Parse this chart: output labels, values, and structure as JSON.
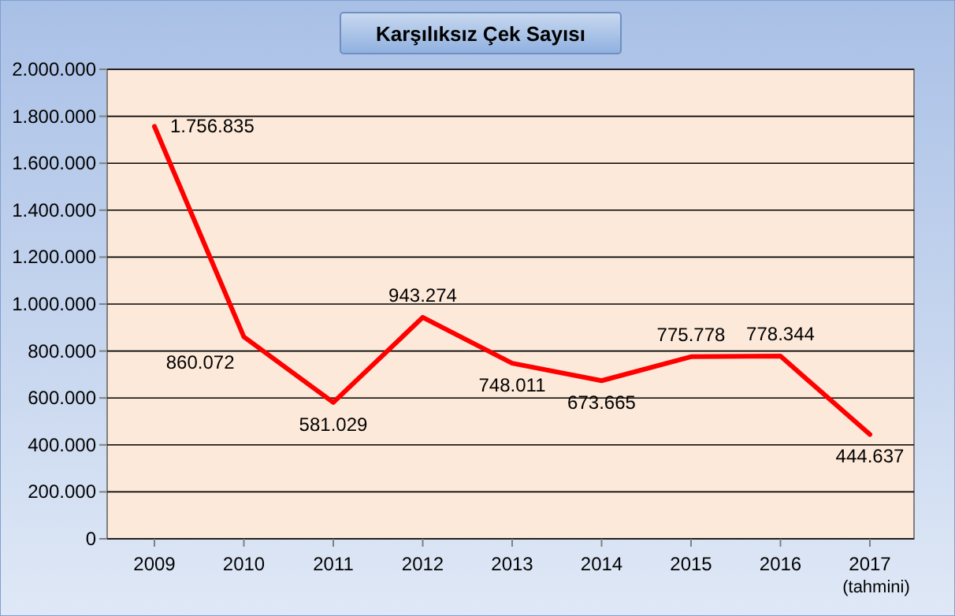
{
  "chart_data": {
    "type": "line",
    "title": "Karşılıksız Çek Sayısı",
    "categories": [
      "2009",
      "2010",
      "2011",
      "2012",
      "2013",
      "2014",
      "2015",
      "2016",
      "2017 (tahmini)"
    ],
    "series": [
      {
        "color": "#ff0000",
        "values": [
          1756835,
          860072,
          581029,
          943274,
          748011,
          673665,
          775778,
          778344,
          444637
        ],
        "value_labels": [
          "1.756.835",
          "860.072",
          "581.029",
          "943.274",
          "748.011",
          "673.665",
          "775.778",
          "778.344",
          "444.637"
        ]
      }
    ],
    "ylim": [
      0,
      2000000
    ],
    "yticks": [
      {
        "value": 0,
        "label": "0"
      },
      {
        "value": 200000,
        "label": "200.000"
      },
      {
        "value": 400000,
        "label": "400.000"
      },
      {
        "value": 600000,
        "label": "600.000"
      },
      {
        "value": 800000,
        "label": "800.000"
      },
      {
        "value": 1000000,
        "label": "1.000.000"
      },
      {
        "value": 1200000,
        "label": "1.200.000"
      },
      {
        "value": 1400000,
        "label": "1.400.000"
      },
      {
        "value": 1600000,
        "label": "1.600.000"
      },
      {
        "value": 1800000,
        "label": "1.800.000"
      },
      {
        "value": 2000000,
        "label": "2.000.000"
      }
    ],
    "grid": "y",
    "marker": "none"
  }
}
